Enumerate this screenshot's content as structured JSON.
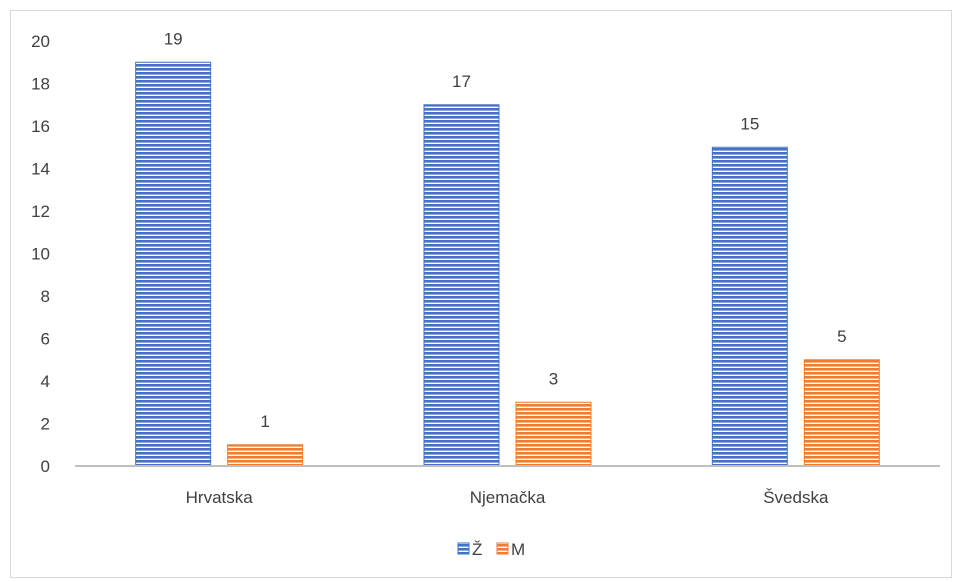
{
  "chart_data": {
    "type": "bar",
    "title": "",
    "xlabel": "",
    "ylabel": "",
    "categories": [
      "Hrvatska",
      "Njemačka",
      "Švedska"
    ],
    "series": [
      {
        "name": "Ž",
        "values": [
          19,
          17,
          15
        ],
        "color": "#4472C4"
      },
      {
        "name": "M",
        "values": [
          1,
          3,
          5
        ],
        "color": "#ED7D31"
      }
    ],
    "ylim": [
      0,
      20
    ],
    "yticks": [
      0,
      2,
      4,
      6,
      8,
      10,
      12,
      14,
      16,
      18,
      20
    ],
    "grid": false,
    "legend_position": "bottom",
    "bar_pattern": "horizontal-stripes"
  }
}
